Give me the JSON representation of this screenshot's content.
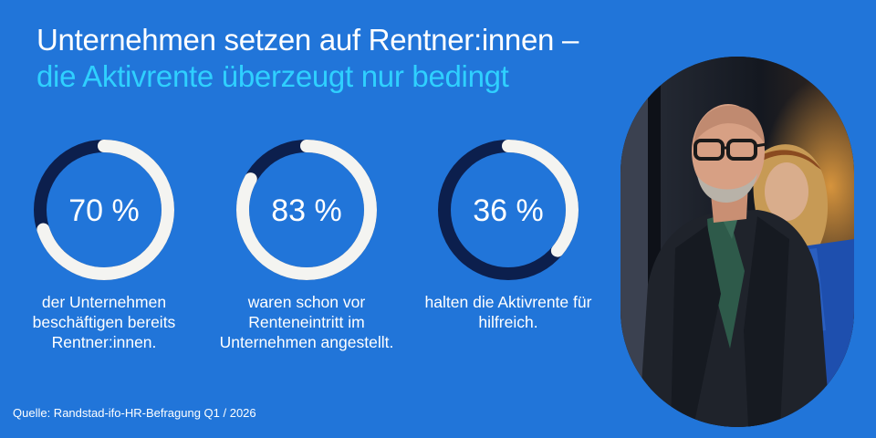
{
  "header": {
    "title_line1": "Unternehmen setzen auf Rentner:innen –",
    "title_line2": "die Aktivrente überzeugt nur bedingt"
  },
  "chart_data": {
    "type": "pie",
    "donuts": [
      {
        "value": 70,
        "label": "70 %",
        "caption": [
          "der Unternehmen",
          "beschäftigen bereits",
          "Rentner:innen."
        ]
      },
      {
        "value": 83,
        "label": "83 %",
        "caption": [
          "waren schon vor",
          "Renteneintritt im",
          "Unternehmen angestellt."
        ]
      },
      {
        "value": 36,
        "label": "36 %",
        "caption": [
          "halten die Aktivrente für",
          "hilfreich."
        ]
      }
    ]
  },
  "colors": {
    "background": "#2175d9",
    "ring_value": "#f4f4f1",
    "ring_track": "#0c1f4d",
    "accent": "#2fd0ff"
  },
  "footer": {
    "source": "Quelle: Randstad-ifo-HR-Befragung Q1 / 2026"
  }
}
